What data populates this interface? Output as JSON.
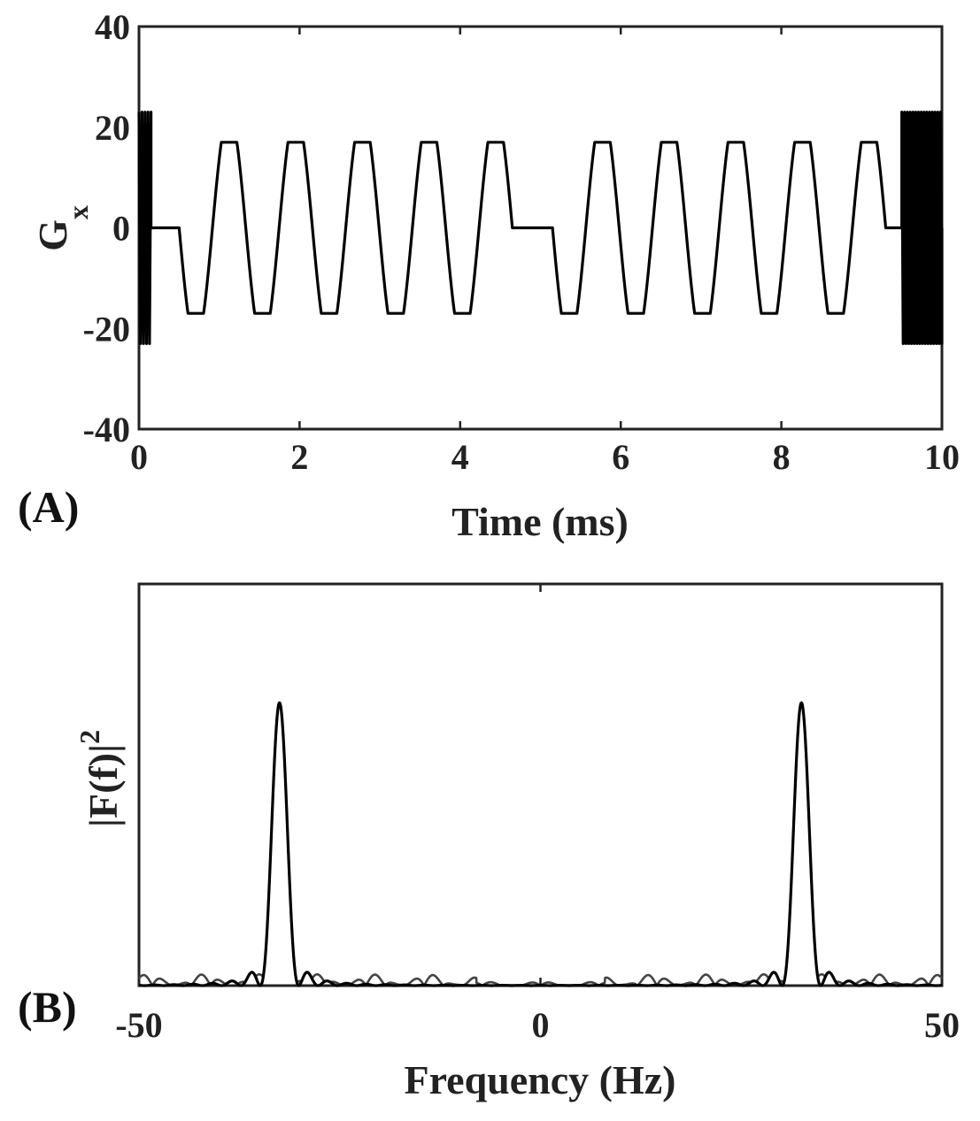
{
  "chart_data": [
    {
      "type": "line",
      "panel_label": "(A)",
      "title": "",
      "xlabel": "Time (ms)",
      "ylabel_main": "G",
      "ylabel_sub": "x",
      "xlim": [
        0,
        10
      ],
      "ylim": [
        -40,
        40
      ],
      "xticks": [
        0,
        2,
        4,
        6,
        8,
        10
      ],
      "xtick_labels": [
        "0",
        "2",
        "4",
        "6",
        "8",
        "10"
      ],
      "yticks": [
        -40,
        -20,
        0,
        20,
        40
      ],
      "ytick_labels": [
        "-40",
        "-20",
        "0",
        "20",
        "40"
      ],
      "grid": false,
      "series": [
        {
          "description_of_shape": "piecewise waveform",
          "segments": [
            {
              "kind": "burst",
              "t_start": 0.0,
              "t_end": 0.15,
              "amplitude": 23,
              "period": 0.04
            },
            {
              "kind": "flat",
              "t_start": 0.15,
              "t_end": 0.5,
              "value": 0
            },
            {
              "kind": "trapezoid-wave",
              "t_start": 0.5,
              "t_end": 4.65,
              "amplitude": 17,
              "period": 0.83,
              "start_phase": "descending"
            },
            {
              "kind": "flat",
              "t_start": 4.65,
              "t_end": 5.15,
              "value": 0
            },
            {
              "kind": "trapezoid-wave",
              "t_start": 5.15,
              "t_end": 9.3,
              "amplitude": 17,
              "period": 0.83,
              "start_phase": "descending"
            },
            {
              "kind": "flat",
              "t_start": 9.3,
              "t_end": 9.5,
              "value": 0
            },
            {
              "kind": "burst",
              "t_start": 9.5,
              "t_end": 10.0,
              "amplitude": 23,
              "period": 0.035
            }
          ]
        }
      ]
    },
    {
      "type": "line",
      "panel_label": "(B)",
      "title": "",
      "xlabel": "Frequency (Hz)",
      "ylabel_main": "|F(f)|",
      "ylabel_sup": "2",
      "xlim": [
        -50,
        50
      ],
      "ylim": [
        0,
        1.42
      ],
      "xticks": [
        -50,
        0,
        50
      ],
      "xtick_labels": [
        "-50",
        "0",
        "50"
      ],
      "yticks": [],
      "grid": false,
      "series": [
        {
          "description_of_shape": "two symmetric peaks with sidelobe ripple",
          "peaks": [
            {
              "center": -32.5,
              "height": 1.0,
              "half_width": 2.4
            },
            {
              "center": 32.5,
              "height": 1.0,
              "half_width": 2.4
            }
          ],
          "sidelobe_level": 0.04
        }
      ]
    }
  ]
}
